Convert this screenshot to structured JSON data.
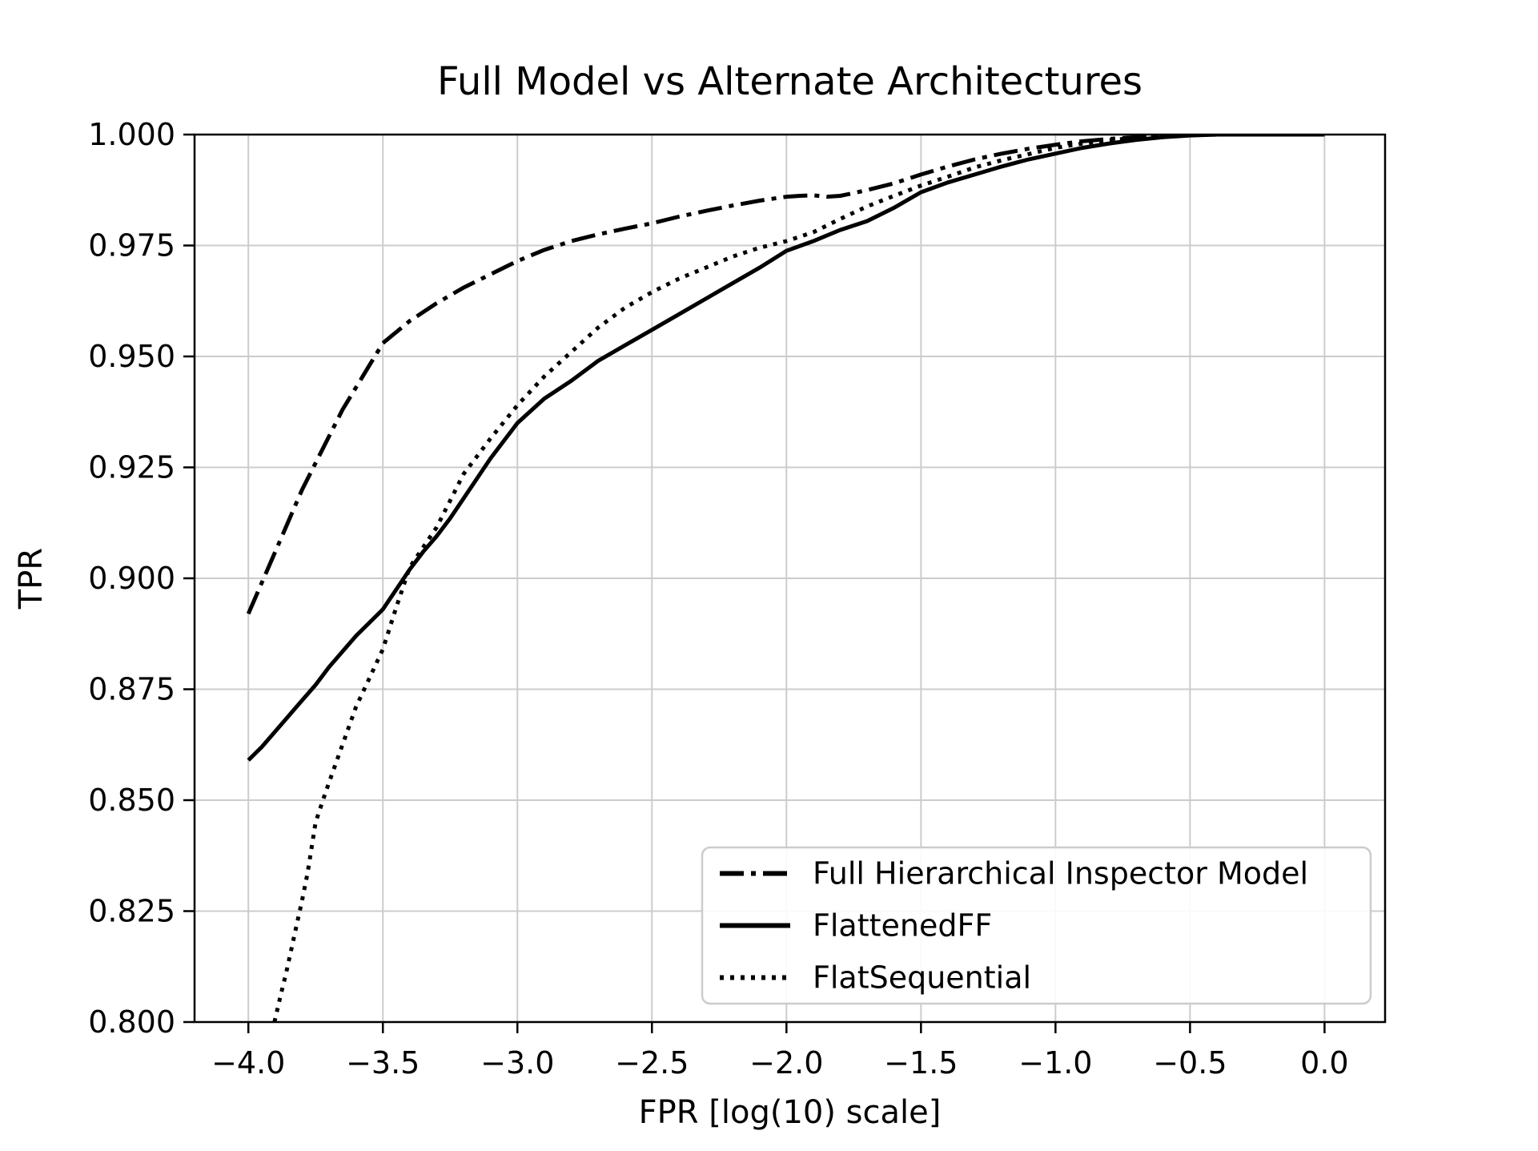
{
  "figure": {
    "title": "Full Model vs Alternate Architectures",
    "background_color": "#ffffff",
    "line_color": "#000000",
    "grid_color": "#cccccc",
    "legend_edge_color": "#cccccc",
    "legend_face_color": "#ffffff"
  },
  "legend": {
    "position": "lower right",
    "entries": [
      {
        "label": "Full Hierarchical Inspector Model",
        "style": "dashdot"
      },
      {
        "label": "FlattenedFF",
        "style": "solid"
      },
      {
        "label": "FlatSequential",
        "style": "dotted"
      }
    ]
  },
  "chart_data": {
    "type": "line",
    "title": "Full Model vs Alternate Architectures",
    "xlabel": "FPR [log(10) scale]",
    "ylabel": "TPR",
    "xlim": [
      -4.2,
      0.225
    ],
    "ylim": [
      0.8,
      1.0
    ],
    "grid": true,
    "legend_position": "lower right",
    "x_ticks": [
      -4.0,
      -3.5,
      -3.0,
      -2.5,
      -2.0,
      -1.5,
      -1.0,
      -0.5,
      0.0
    ],
    "x_tick_labels": [
      "−4.0",
      "−3.5",
      "−3.0",
      "−2.5",
      "−2.0",
      "−1.5",
      "−1.0",
      "−0.5",
      "0.0"
    ],
    "y_ticks": [
      0.8,
      0.825,
      0.85,
      0.875,
      0.9,
      0.925,
      0.95,
      0.975,
      1.0
    ],
    "y_tick_labels": [
      "0.800",
      "0.825",
      "0.850",
      "0.875",
      "0.900",
      "0.925",
      "0.950",
      "0.975",
      "1.000"
    ],
    "series": [
      {
        "name": "Full Hierarchical Inspector Model",
        "style": "dashdot",
        "color": "#000000",
        "x": [
          -4.0,
          -3.95,
          -3.9,
          -3.85,
          -3.8,
          -3.75,
          -3.7,
          -3.65,
          -3.6,
          -3.55,
          -3.5,
          -3.4,
          -3.3,
          -3.2,
          -3.1,
          -3.0,
          -2.9,
          -2.8,
          -2.7,
          -2.6,
          -2.5,
          -2.4,
          -2.3,
          -2.2,
          -2.1,
          -2.0,
          -1.95,
          -1.9,
          -1.85,
          -1.8,
          -1.75,
          -1.7,
          -1.6,
          -1.5,
          -1.4,
          -1.3,
          -1.2,
          -1.1,
          -1.0,
          -0.9,
          -0.8,
          -0.7,
          -0.6,
          -0.5,
          -0.4,
          -0.3,
          -0.2,
          -0.1,
          0.0
        ],
        "y": [
          0.892,
          0.899,
          0.906,
          0.913,
          0.92,
          0.926,
          0.932,
          0.938,
          0.943,
          0.948,
          0.953,
          0.958,
          0.962,
          0.9655,
          0.9685,
          0.9715,
          0.974,
          0.976,
          0.9775,
          0.9788,
          0.98,
          0.9815,
          0.9828,
          0.984,
          0.9851,
          0.986,
          0.9862,
          0.9863,
          0.986,
          0.9862,
          0.9868,
          0.9875,
          0.989,
          0.991,
          0.9928,
          0.9944,
          0.9957,
          0.9968,
          0.9977,
          0.9985,
          0.999,
          0.9994,
          0.9997,
          0.9999,
          1.0,
          1.0,
          1.0,
          1.0,
          1.0
        ]
      },
      {
        "name": "FlattenedFF",
        "style": "solid",
        "color": "#000000",
        "x": [
          -4.0,
          -3.95,
          -3.9,
          -3.85,
          -3.8,
          -3.75,
          -3.7,
          -3.65,
          -3.6,
          -3.55,
          -3.5,
          -3.45,
          -3.4,
          -3.35,
          -3.3,
          -3.25,
          -3.2,
          -3.15,
          -3.1,
          -3.0,
          -2.9,
          -2.8,
          -2.7,
          -2.6,
          -2.5,
          -2.4,
          -2.3,
          -2.2,
          -2.1,
          -2.0,
          -1.9,
          -1.8,
          -1.7,
          -1.6,
          -1.5,
          -1.4,
          -1.3,
          -1.2,
          -1.1,
          -1.0,
          -0.9,
          -0.8,
          -0.7,
          -0.6,
          -0.5,
          -0.4,
          -0.3,
          -0.2,
          -0.1,
          0.0
        ],
        "y": [
          0.859,
          0.862,
          0.8655,
          0.869,
          0.8725,
          0.876,
          0.88,
          0.8835,
          0.887,
          0.89,
          0.893,
          0.8975,
          0.902,
          0.906,
          0.9095,
          0.9135,
          0.918,
          0.9225,
          0.927,
          0.935,
          0.9405,
          0.9445,
          0.949,
          0.9525,
          0.956,
          0.9595,
          0.963,
          0.9665,
          0.97,
          0.9738,
          0.976,
          0.9785,
          0.9805,
          0.9835,
          0.987,
          0.9892,
          0.991,
          0.9928,
          0.9944,
          0.9957,
          0.997,
          0.998,
          0.9988,
          0.9994,
          0.9998,
          1.0,
          1.0,
          1.0,
          1.0,
          1.0
        ]
      },
      {
        "name": "FlatSequential",
        "style": "dotted",
        "color": "#000000",
        "x": [
          -3.903,
          -3.88,
          -3.86,
          -3.84,
          -3.82,
          -3.8,
          -3.78,
          -3.75,
          -3.72,
          -3.7,
          -3.65,
          -3.6,
          -3.55,
          -3.5,
          -3.45,
          -3.4,
          -3.35,
          -3.3,
          -3.25,
          -3.2,
          -3.15,
          -3.1,
          -3.0,
          -2.9,
          -2.8,
          -2.7,
          -2.6,
          -2.5,
          -2.4,
          -2.3,
          -2.2,
          -2.1,
          -2.0,
          -1.9,
          -1.8,
          -1.7,
          -1.6,
          -1.5,
          -1.4,
          -1.3,
          -1.2,
          -1.1,
          -1.0,
          -0.9,
          -0.8,
          -0.7,
          -0.6,
          -0.5,
          -0.4,
          -0.3,
          -0.2,
          -0.1,
          0.0
        ],
        "y": [
          0.8,
          0.806,
          0.811,
          0.8165,
          0.822,
          0.8275,
          0.8335,
          0.845,
          0.8505,
          0.854,
          0.8625,
          0.871,
          0.8775,
          0.884,
          0.8935,
          0.9025,
          0.907,
          0.9115,
          0.9175,
          0.9235,
          0.9275,
          0.9315,
          0.939,
          0.9455,
          0.951,
          0.9565,
          0.961,
          0.9645,
          0.9675,
          0.97,
          0.9725,
          0.9745,
          0.976,
          0.978,
          0.981,
          0.9838,
          0.9862,
          0.9885,
          0.9905,
          0.9926,
          0.9942,
          0.9956,
          0.997,
          0.998,
          0.9987,
          0.9993,
          0.9997,
          0.9999,
          1.0,
          1.0,
          1.0,
          1.0,
          1.0
        ]
      }
    ]
  }
}
